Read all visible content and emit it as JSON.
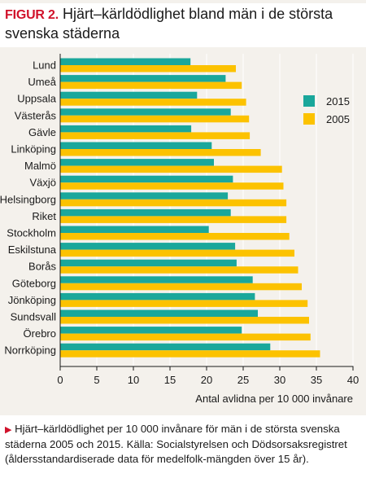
{
  "figure": {
    "label": "FIGUR 2.",
    "title": "Hjärt–kärldödlighet bland män i de största svenska städerna"
  },
  "caption": {
    "marker": "▶",
    "text": "Hjärt–kärldödlighet per 10 000 invånare för män i de största svenska städerna 2005 och 2015. Källa: Socialstyrelsen och Dödsorsaksregistret (åldersstandardiserade data för medelfolk-mängden över 15 år)."
  },
  "colors": {
    "series_2015": "#1aa79b",
    "series_2005": "#fcc200",
    "panel_bg": "#f4f1ec",
    "grid": "#ffffff",
    "axis": "#1a1a1a",
    "accent": "#d1122b"
  },
  "chart_data": {
    "type": "bar",
    "orientation": "horizontal",
    "title": "Hjärt–kärldödlighet bland män i de största svenska städerna",
    "xlabel": "Antal avlidna per 10 000 invånare",
    "ylabel": "",
    "xlim": [
      0,
      40
    ],
    "xticks": [
      0,
      5,
      10,
      15,
      20,
      25,
      30,
      35,
      40
    ],
    "grid": true,
    "legend_position": "right",
    "categories": [
      "Lund",
      "Umeå",
      "Uppsala",
      "Västerås",
      "Gävle",
      "Linköping",
      "Malmö",
      "Växjö",
      "Helsingborg",
      "Riket",
      "Stockholm",
      "Eskilstuna",
      "Borås",
      "Göteborg",
      "Jönköping",
      "Sundsvall",
      "Örebro",
      "Norrköping"
    ],
    "series": [
      {
        "name": "2015",
        "color": "#1aa79b",
        "values": [
          17.8,
          22.6,
          18.7,
          23.3,
          17.9,
          20.7,
          21.0,
          23.6,
          22.9,
          23.3,
          20.3,
          23.9,
          24.1,
          26.3,
          26.6,
          27.0,
          24.8,
          28.7
        ]
      },
      {
        "name": "2005",
        "color": "#fcc200",
        "values": [
          24.0,
          24.8,
          25.4,
          25.8,
          25.9,
          27.4,
          30.3,
          30.5,
          30.9,
          30.9,
          31.3,
          32.0,
          32.5,
          33.0,
          33.8,
          34.0,
          34.2,
          35.5
        ]
      }
    ]
  }
}
